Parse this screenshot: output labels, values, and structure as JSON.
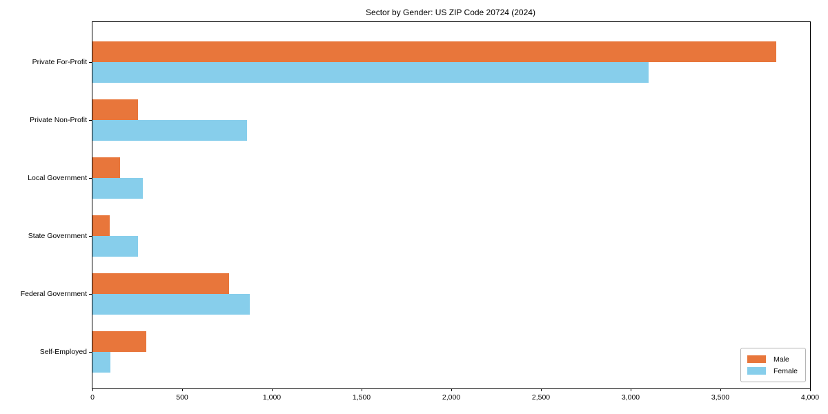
{
  "chart_data": {
    "type": "bar",
    "orientation": "horizontal",
    "title": "Sector by Gender: US ZIP Code 20724 (2024)",
    "categories": [
      "Private For-Profit",
      "Private Non-Profit",
      "Local Government",
      "State Government",
      "Federal Government",
      "Self-Employed"
    ],
    "series": [
      {
        "name": "Male",
        "color": "#e8763b",
        "values": [
          3810,
          255,
          155,
          95,
          760,
          300
        ]
      },
      {
        "name": "Female",
        "color": "#87ceeb",
        "values": [
          3100,
          860,
          280,
          255,
          875,
          100
        ]
      }
    ],
    "xlabel": "",
    "ylabel": "",
    "xlim": [
      0,
      4000
    ],
    "xticks": [
      0,
      500,
      1000,
      1500,
      2000,
      2500,
      3000,
      3500,
      4000
    ],
    "xtick_labels": [
      "0",
      "500",
      "1,000",
      "1,500",
      "2,000",
      "2,500",
      "3,000",
      "3,500",
      "4,000"
    ],
    "grid": false,
    "legend": {
      "position": "lower right"
    }
  }
}
